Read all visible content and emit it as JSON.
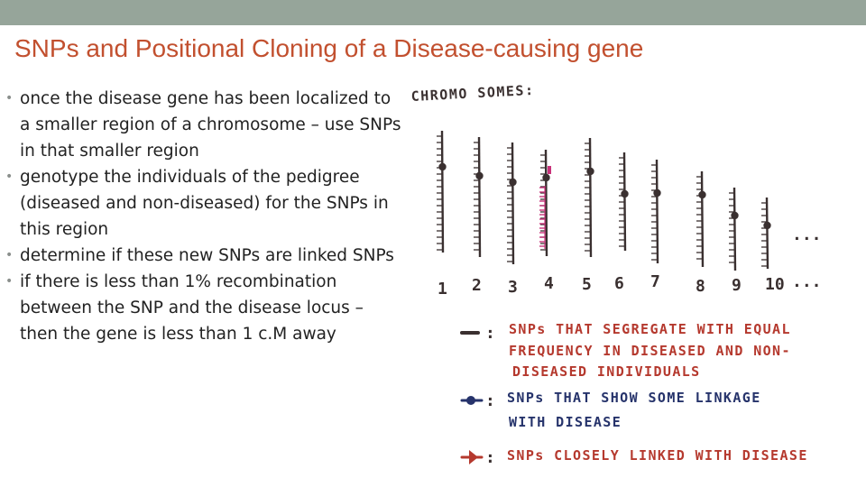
{
  "slide": {
    "title": "SNPs and Positional Cloning of a Disease-causing gene",
    "bullets": [
      "once the disease gene has been localized to a smaller region of a chromosome – use SNPs in that smaller region",
      "genotype the individuals of the pedigree (diseased and non-diseased) for the SNPs in this region",
      "determine if these new SNPs are linked SNPs",
      "if there is less than 1% recombination between the SNP and the disease locus – then the gene is less than 1 c.M away"
    ]
  },
  "drawing": {
    "heading": "CHROMO SOMES:",
    "chromosome_labels": [
      "1",
      "2",
      "3",
      "4",
      "5",
      "6",
      "7",
      "8",
      "9",
      "10"
    ],
    "ellipsis_mid": "...",
    "ellipsis_end": "...",
    "legend": [
      {
        "marker": "dash",
        "lines": [
          "SNPs THAT SEGREGATE WITH EQUAL",
          "FREQUENCY IN DISEASED AND NON-",
          "DISEASED INDIVIDUALS"
        ]
      },
      {
        "marker": "dot",
        "lines": [
          "SNPs THAT SHOW SOME LINKAGE",
          "WITH DISEASE"
        ]
      },
      {
        "marker": "flag",
        "lines": [
          "SNPs CLOSELY LINKED WITH DISEASE"
        ]
      }
    ],
    "colors": {
      "ink_dark": "#3a3030",
      "ink_red": "#b5392e",
      "ink_blue": "#26336b",
      "ink_pink": "#c8327a",
      "title": "#c2502f",
      "top_bar": "#96a59a"
    }
  }
}
